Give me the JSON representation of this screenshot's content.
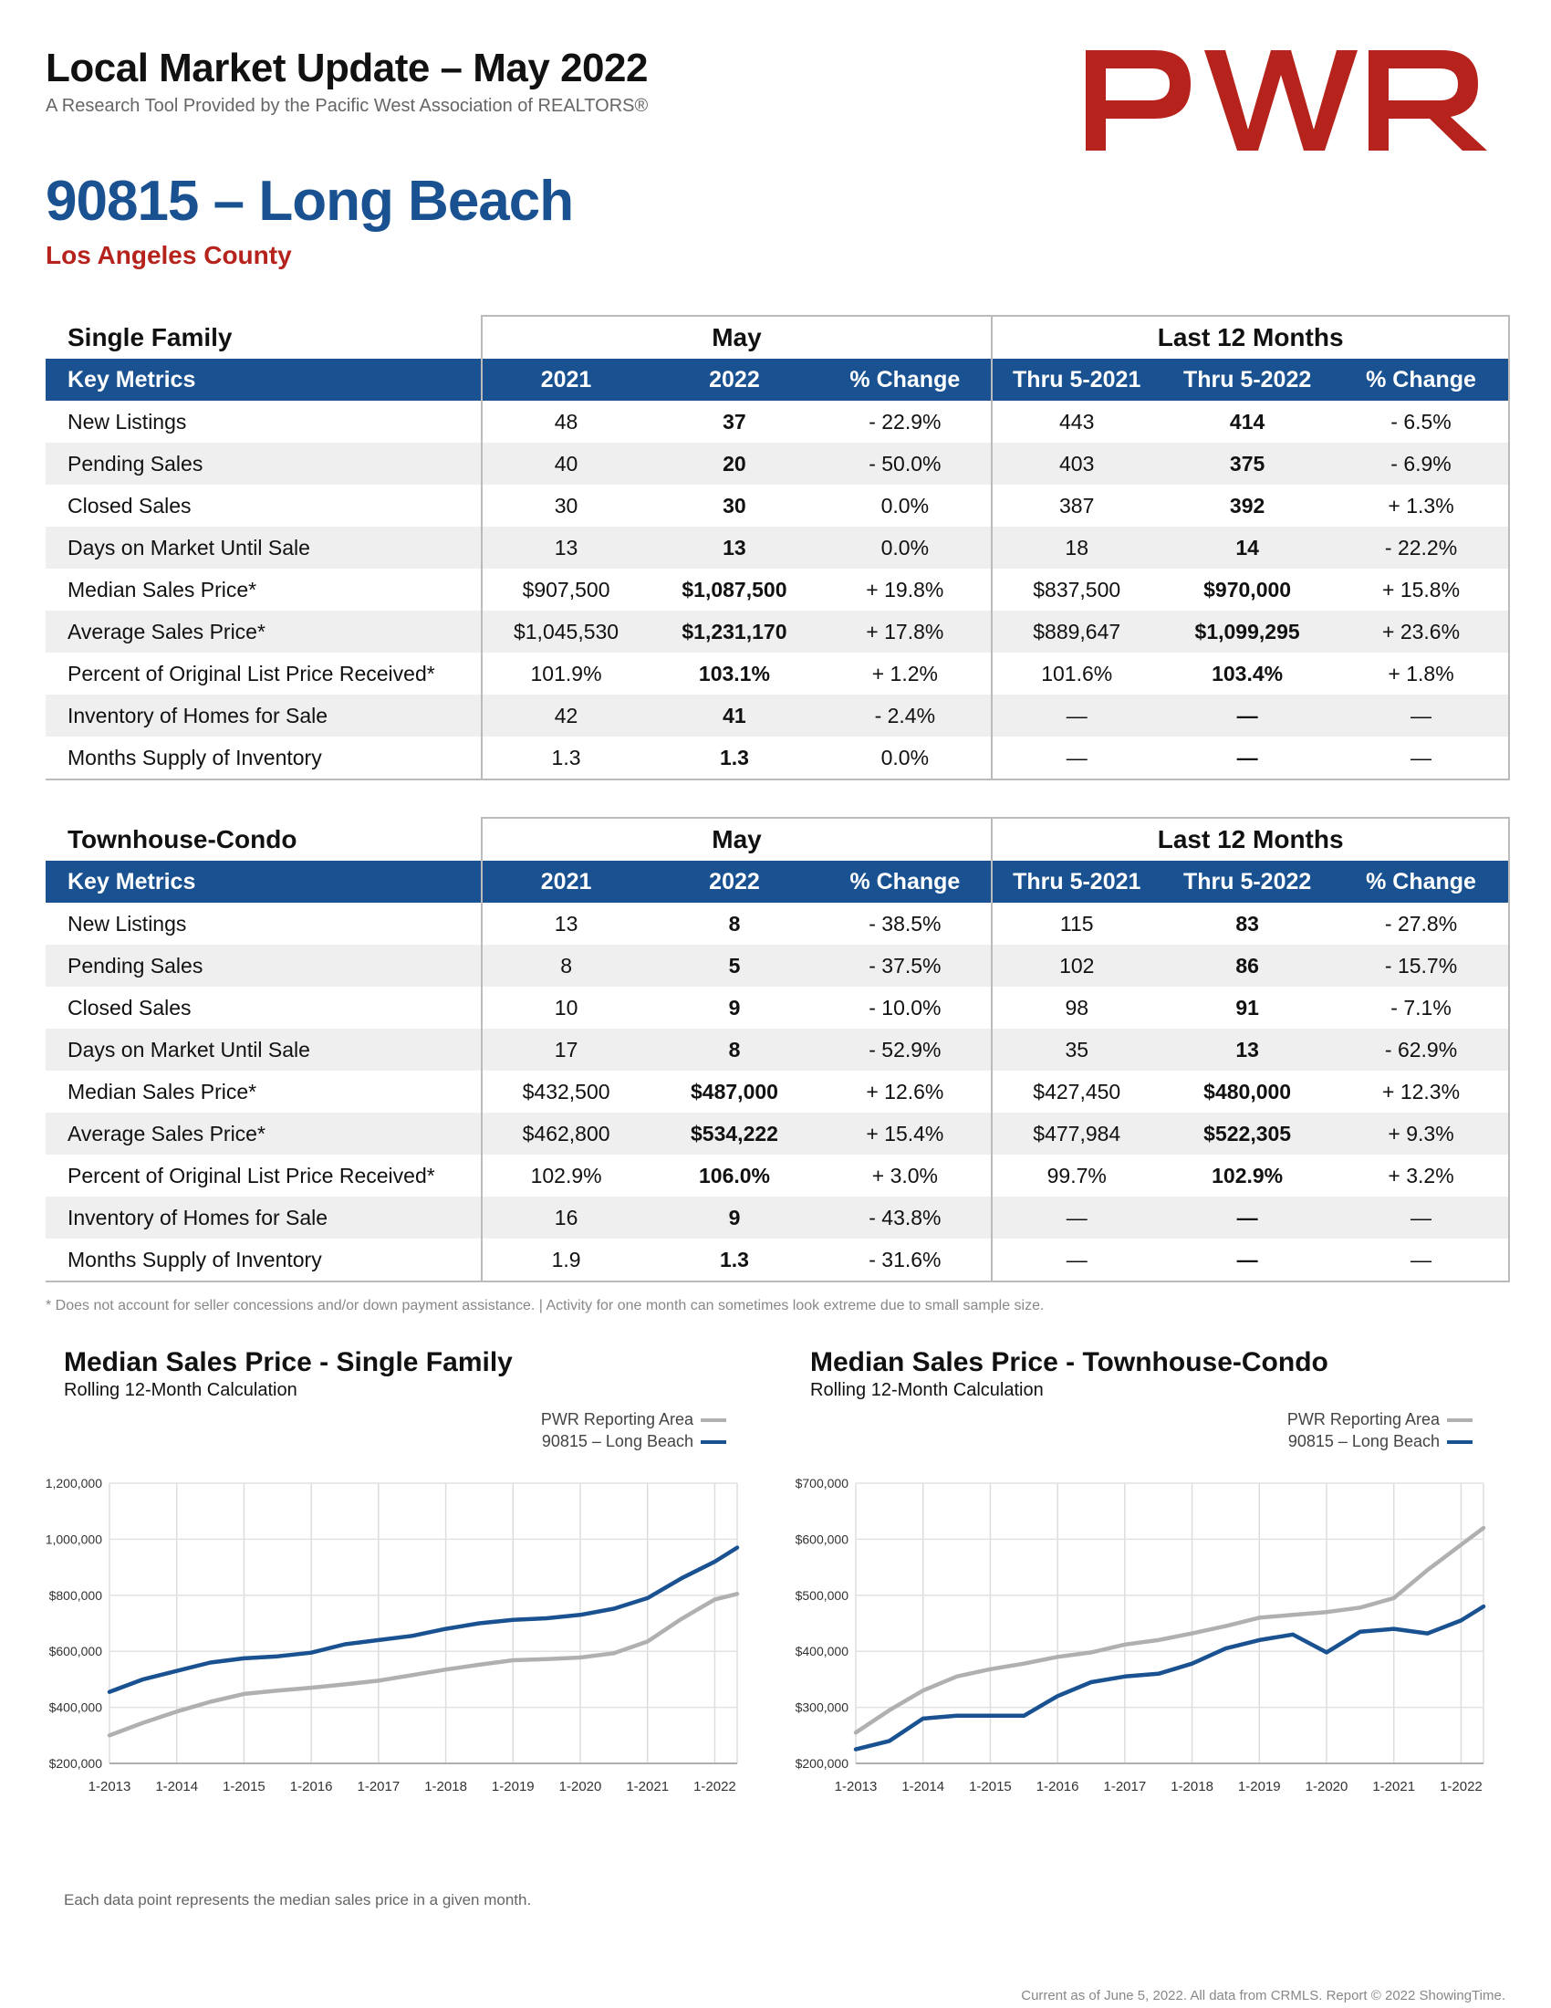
{
  "header": {
    "title": "Local Market Update – May 2022",
    "subtitle": "A Research Tool Provided by the Pacific West Association of REALTORS®",
    "logo_text": "PWR",
    "brand_color": "#b5231c",
    "accent_color": "#1a5291"
  },
  "area": {
    "title": "90815 – Long Beach",
    "county": "Los Angeles County"
  },
  "tables": [
    {
      "title": "Single Family",
      "group_may": "May",
      "group_12": "Last 12 Months",
      "columns": [
        "Key Metrics",
        "2021",
        "2022",
        "% Change",
        "Thru 5-2021",
        "Thru 5-2022",
        "% Change"
      ],
      "rows": [
        [
          "New Listings",
          "48",
          "37",
          "- 22.9%",
          "443",
          "414",
          "- 6.5%"
        ],
        [
          "Pending Sales",
          "40",
          "20",
          "- 50.0%",
          "403",
          "375",
          "- 6.9%"
        ],
        [
          "Closed Sales",
          "30",
          "30",
          "0.0%",
          "387",
          "392",
          "+ 1.3%"
        ],
        [
          "Days on Market Until Sale",
          "13",
          "13",
          "0.0%",
          "18",
          "14",
          "- 22.2%"
        ],
        [
          "Median Sales Price*",
          "$907,500",
          "$1,087,500",
          "+ 19.8%",
          "$837,500",
          "$970,000",
          "+ 15.8%"
        ],
        [
          "Average Sales Price*",
          "$1,045,530",
          "$1,231,170",
          "+ 17.8%",
          "$889,647",
          "$1,099,295",
          "+ 23.6%"
        ],
        [
          "Percent of Original List Price Received*",
          "101.9%",
          "103.1%",
          "+ 1.2%",
          "101.6%",
          "103.4%",
          "+ 1.8%"
        ],
        [
          "Inventory of Homes for Sale",
          "42",
          "41",
          "- 2.4%",
          "—",
          "—",
          "—"
        ],
        [
          "Months Supply of Inventory",
          "1.3",
          "1.3",
          "0.0%",
          "—",
          "—",
          "—"
        ]
      ]
    },
    {
      "title": "Townhouse-Condo",
      "group_may": "May",
      "group_12": "Last 12 Months",
      "columns": [
        "Key Metrics",
        "2021",
        "2022",
        "% Change",
        "Thru 5-2021",
        "Thru 5-2022",
        "% Change"
      ],
      "rows": [
        [
          "New Listings",
          "13",
          "8",
          "- 38.5%",
          "115",
          "83",
          "- 27.8%"
        ],
        [
          "Pending Sales",
          "8",
          "5",
          "- 37.5%",
          "102",
          "86",
          "- 15.7%"
        ],
        [
          "Closed Sales",
          "10",
          "9",
          "- 10.0%",
          "98",
          "91",
          "- 7.1%"
        ],
        [
          "Days on Market Until Sale",
          "17",
          "8",
          "- 52.9%",
          "35",
          "13",
          "- 62.9%"
        ],
        [
          "Median Sales Price*",
          "$432,500",
          "$487,000",
          "+ 12.6%",
          "$427,450",
          "$480,000",
          "+ 12.3%"
        ],
        [
          "Average Sales Price*",
          "$462,800",
          "$534,222",
          "+ 15.4%",
          "$477,984",
          "$522,305",
          "+ 9.3%"
        ],
        [
          "Percent of Original List Price Received*",
          "102.9%",
          "106.0%",
          "+ 3.0%",
          "99.7%",
          "102.9%",
          "+ 3.2%"
        ],
        [
          "Inventory of Homes for Sale",
          "16",
          "9",
          "- 43.8%",
          "—",
          "—",
          "—"
        ],
        [
          "Months Supply of Inventory",
          "1.9",
          "1.3",
          "- 31.6%",
          "—",
          "—",
          "—"
        ]
      ]
    }
  ],
  "footnote": "* Does not account for seller concessions and/or down payment assistance. | Activity for one month can sometimes look extreme due to small sample size.",
  "chart_data": [
    {
      "type": "line",
      "title": "Median Sales Price - Single Family",
      "subtitle": "Rolling 12-Month Calculation",
      "x": [
        "1-2013",
        "7-2013",
        "1-2014",
        "7-2014",
        "1-2015",
        "7-2015",
        "1-2016",
        "7-2016",
        "1-2017",
        "7-2017",
        "1-2018",
        "7-2018",
        "1-2019",
        "7-2019",
        "1-2020",
        "7-2020",
        "1-2021",
        "7-2021",
        "1-2022",
        "5-2022"
      ],
      "xticks": [
        "1-2013",
        "1-2014",
        "1-2015",
        "1-2016",
        "1-2017",
        "1-2018",
        "1-2019",
        "1-2020",
        "1-2021",
        "1-2022"
      ],
      "ylim": [
        200000,
        1200000
      ],
      "yticks": [
        "$200,000",
        "$400,000",
        "$600,000",
        "$800,000",
        "$1,000,000",
        "$1,200,000"
      ],
      "ytick_values": [
        200000,
        400000,
        600000,
        800000,
        1000000,
        1200000
      ],
      "legend_placement": "top-right",
      "series": [
        {
          "name": "PWR Reporting Area",
          "color": "#b0b0b0",
          "values": [
            300000,
            345000,
            385000,
            420000,
            448000,
            460000,
            470000,
            482000,
            495000,
            515000,
            535000,
            552000,
            568000,
            572000,
            578000,
            593000,
            635000,
            715000,
            785000,
            805000
          ]
        },
        {
          "name": "90815 – Long Beach",
          "color": "#1a5291",
          "values": [
            455000,
            500000,
            530000,
            560000,
            575000,
            582000,
            595000,
            625000,
            640000,
            655000,
            680000,
            700000,
            712000,
            718000,
            730000,
            752000,
            790000,
            860000,
            920000,
            970000
          ]
        }
      ]
    },
    {
      "type": "line",
      "title": "Median Sales Price - Townhouse-Condo",
      "subtitle": "Rolling 12-Month Calculation",
      "x": [
        "1-2013",
        "7-2013",
        "1-2014",
        "7-2014",
        "1-2015",
        "7-2015",
        "1-2016",
        "7-2016",
        "1-2017",
        "7-2017",
        "1-2018",
        "7-2018",
        "1-2019",
        "7-2019",
        "1-2020",
        "7-2020",
        "1-2021",
        "7-2021",
        "1-2022",
        "5-2022"
      ],
      "xticks": [
        "1-2013",
        "1-2014",
        "1-2015",
        "1-2016",
        "1-2017",
        "1-2018",
        "1-2019",
        "1-2020",
        "1-2021",
        "1-2022"
      ],
      "ylim": [
        200000,
        700000
      ],
      "yticks": [
        "$200,000",
        "$300,000",
        "$400,000",
        "$500,000",
        "$600,000",
        "$700,000"
      ],
      "ytick_values": [
        200000,
        300000,
        400000,
        500000,
        600000,
        700000
      ],
      "legend_placement": "top-right",
      "series": [
        {
          "name": "PWR Reporting Area",
          "color": "#b0b0b0",
          "values": [
            255000,
            295000,
            330000,
            355000,
            368000,
            378000,
            390000,
            398000,
            412000,
            420000,
            432000,
            445000,
            460000,
            465000,
            470000,
            478000,
            495000,
            545000,
            590000,
            620000
          ]
        },
        {
          "name": "90815 – Long Beach",
          "color": "#1a5291",
          "values": [
            225000,
            240000,
            280000,
            285000,
            285000,
            285000,
            320000,
            345000,
            355000,
            360000,
            378000,
            405000,
            420000,
            430000,
            398000,
            435000,
            440000,
            432000,
            455000,
            480000
          ]
        }
      ]
    }
  ],
  "chart_footer": "Each data point represents the median sales price in a given month.",
  "footer": "Current as of June 5, 2022. All data from CRMLS. Report © 2022 ShowingTime."
}
